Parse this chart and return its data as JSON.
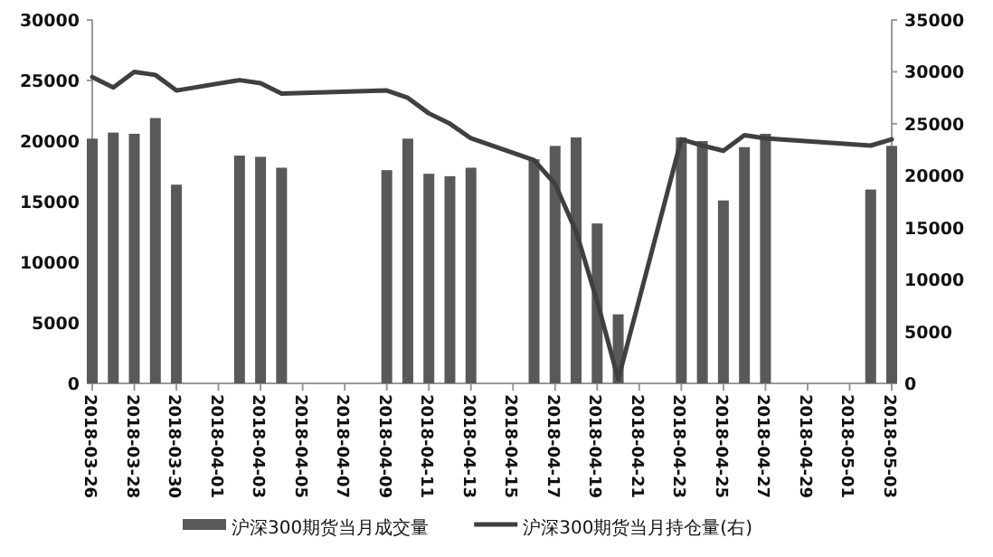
{
  "chart_data": {
    "type": "bar",
    "legend": "bottom",
    "grid": false,
    "xlim": [
      "2018-03-26",
      "2018-05-03"
    ],
    "xticks": [
      "2018-03-26",
      "2018-03-28",
      "2018-03-30",
      "2018-04-01",
      "2018-04-03",
      "2018-04-05",
      "2018-04-07",
      "2018-04-09",
      "2018-04-11",
      "2018-04-13",
      "2018-04-15",
      "2018-04-17",
      "2018-04-19",
      "2018-04-21",
      "2018-04-23",
      "2018-04-25",
      "2018-04-27",
      "2018-04-29",
      "2018-05-01",
      "2018-05-03"
    ],
    "ylim": [
      0,
      30000
    ],
    "yticks": [
      0,
      5000,
      10000,
      15000,
      20000,
      25000,
      30000
    ],
    "y2lim": [
      0,
      35000
    ],
    "y2ticks": [
      0,
      5000,
      10000,
      15000,
      20000,
      25000,
      30000,
      35000
    ],
    "series": [
      {
        "name": "沪深300期货当月成交量",
        "color": "#595959",
        "x": [
          "2018-03-26",
          "2018-03-27",
          "2018-03-28",
          "2018-03-29",
          "2018-03-30",
          "2018-04-02",
          "2018-04-03",
          "2018-04-04",
          "2018-04-09",
          "2018-04-10",
          "2018-04-11",
          "2018-04-12",
          "2018-04-13",
          "2018-04-16",
          "2018-04-17",
          "2018-04-18",
          "2018-04-19",
          "2018-04-20",
          "2018-04-23",
          "2018-04-24",
          "2018-04-25",
          "2018-04-26",
          "2018-04-27",
          "2018-05-02",
          "2018-05-03"
        ],
        "values": [
          20200,
          20700,
          20600,
          21900,
          16400,
          18800,
          18700,
          17800,
          17600,
          20200,
          17300,
          17100,
          17800,
          18500,
          19600,
          20300,
          13200,
          5700,
          20300,
          20000,
          15100,
          19500,
          20600,
          16000,
          19600
        ]
      },
      {
        "name": "沪深300期货当月持仓量(右)",
        "type": "line",
        "axis": "y2",
        "color": "#404040",
        "marker": "none",
        "line_style": "solid",
        "x": [
          "2018-03-26",
          "2018-03-27",
          "2018-03-28",
          "2018-03-29",
          "2018-03-30",
          "2018-04-02",
          "2018-04-03",
          "2018-04-04",
          "2018-04-09",
          "2018-04-10",
          "2018-04-11",
          "2018-04-12",
          "2018-04-13",
          "2018-04-16",
          "2018-04-17",
          "2018-04-18",
          "2018-04-19",
          "2018-04-20",
          "2018-04-23",
          "2018-04-24",
          "2018-04-25",
          "2018-04-26",
          "2018-04-27",
          "2018-05-02",
          "2018-05-03"
        ],
        "values": [
          29500,
          28500,
          30000,
          29700,
          28200,
          29200,
          28900,
          27900,
          28200,
          27500,
          26000,
          25000,
          23600,
          21500,
          19200,
          14600,
          7900,
          400,
          23500,
          22900,
          22400,
          23900,
          23600,
          22900,
          23500
        ]
      }
    ]
  }
}
